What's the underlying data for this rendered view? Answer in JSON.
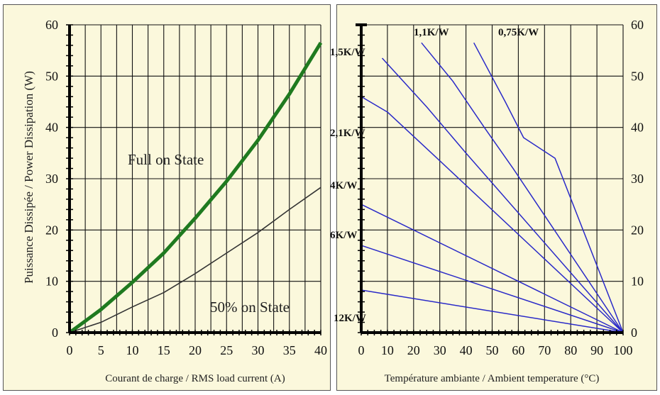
{
  "chart_data": [
    {
      "type": "line",
      "ylabel": "Puissance Dissipée / Power Dissipation (W)",
      "xlabel": "Courant de charge / RMS load current (A)",
      "xlim": [
        0,
        40
      ],
      "ylim": [
        0,
        60
      ],
      "x_ticks": [
        0,
        5,
        10,
        15,
        20,
        25,
        30,
        35,
        40
      ],
      "y_ticks": [
        0,
        10,
        20,
        30,
        40,
        50,
        60
      ],
      "grid": true,
      "series": [
        {
          "name": "Full on State",
          "color": "#1f7a1f",
          "x": [
            0,
            5,
            10,
            15,
            20,
            25,
            30,
            35,
            40
          ],
          "y": [
            0,
            4.5,
            9.8,
            15.5,
            22.3,
            29.5,
            37.5,
            46.5,
            56.5
          ]
        },
        {
          "name": "50% on State",
          "color": "#333333",
          "x": [
            0,
            5,
            10,
            15,
            20,
            25,
            30,
            35,
            40
          ],
          "y": [
            0,
            2,
            5,
            7.8,
            11.5,
            15.5,
            19.5,
            24,
            28.3
          ]
        }
      ]
    },
    {
      "type": "line",
      "xlabel": "Température ambiante / Ambient temperature (°C)",
      "xlim": [
        0,
        100
      ],
      "ylim": [
        0,
        60
      ],
      "x_ticks": [
        0,
        10,
        20,
        30,
        40,
        50,
        60,
        70,
        80,
        90,
        100
      ],
      "y_ticks": [
        0,
        10,
        20,
        30,
        40,
        50,
        60
      ],
      "grid": true,
      "series": [
        {
          "name": "0,75K/W",
          "color": "#2a2ac8",
          "x": [
            43,
            55,
            62,
            74,
            100
          ],
          "y": [
            56.5,
            45,
            38,
            34,
            0
          ]
        },
        {
          "name": "1,1K/W",
          "color": "#2a2ac8",
          "x": [
            23,
            35,
            47,
            58,
            100
          ],
          "y": [
            56.5,
            49,
            40,
            32,
            0
          ]
        },
        {
          "name": "1,5K/W",
          "color": "#2a2ac8",
          "x": [
            8,
            25,
            40,
            100
          ],
          "y": [
            53.5,
            44,
            35,
            0
          ]
        },
        {
          "name": "2,1K/W",
          "color": "#2a2ac8",
          "x": [
            0,
            10,
            30,
            100
          ],
          "y": [
            46,
            43,
            33.5,
            0
          ]
        },
        {
          "name": "4K/W",
          "color": "#2a2ac8",
          "x": [
            0,
            100
          ],
          "y": [
            25,
            0
          ]
        },
        {
          "name": "6K/W",
          "color": "#2a2ac8",
          "x": [
            0,
            100
          ],
          "y": [
            17,
            0
          ]
        },
        {
          "name": "12K/W",
          "color": "#2a2ac8",
          "x": [
            0,
            100
          ],
          "y": [
            8.3,
            0
          ]
        }
      ]
    }
  ],
  "labels": {
    "full_on_state": "Full on State",
    "half_on_state": "50% on State",
    "kw_075": "0,75K/W",
    "kw_11": "1,1K/W",
    "kw_15": "1,5K/W",
    "kw_21": "2,1K/W",
    "kw_4": "4K/W",
    "kw_6": "6K/W",
    "kw_12": "12K/W"
  }
}
